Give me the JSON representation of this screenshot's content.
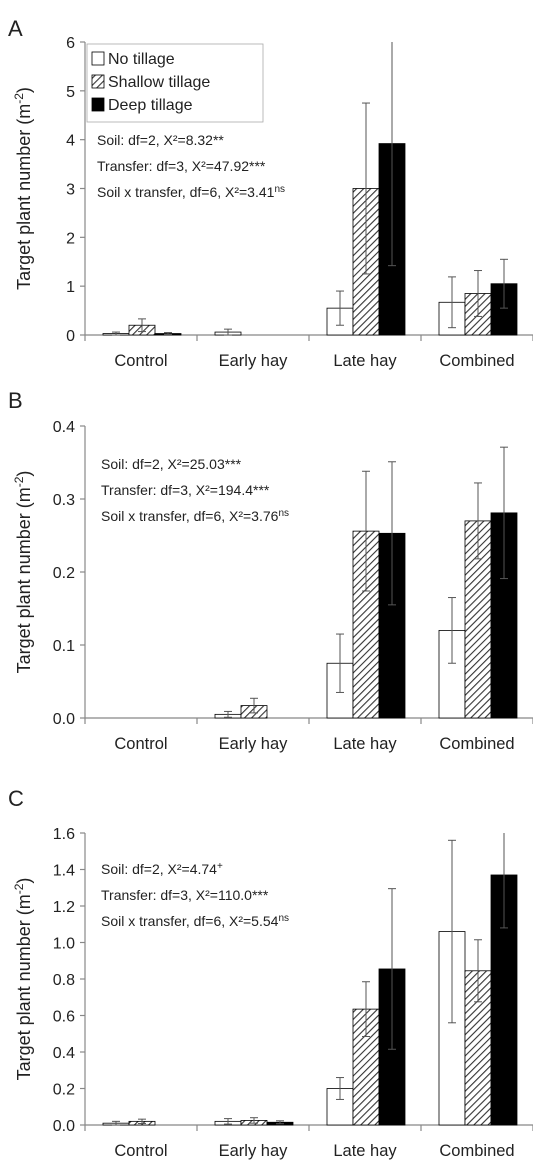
{
  "legend": {
    "items": [
      {
        "label": "No tillage",
        "fill": "white"
      },
      {
        "label": "Shallow tillage",
        "fill": "hatch"
      },
      {
        "label": "Deep tillage",
        "fill": "black"
      }
    ]
  },
  "colors": {
    "axis": "#888888",
    "deep": "#000000",
    "none": "#ffffff",
    "hatch": "#333333"
  },
  "chart_data": [
    {
      "panel": "A",
      "type": "bar",
      "ylabel_main": "Target plant number (m",
      "ylabel_sup": "-2",
      "ylabel_close": ")",
      "categories": [
        "Control",
        "Early hay",
        "Late hay",
        "Combined"
      ],
      "ylim": [
        0,
        6
      ],
      "yticks": [
        0,
        1,
        2,
        3,
        4,
        5,
        6
      ],
      "tick_labels": [
        "0",
        "1",
        "2",
        "3",
        "4",
        "5",
        "6"
      ],
      "series": [
        {
          "name": "No tillage",
          "values": [
            0.03,
            0.06,
            0.55,
            0.67
          ],
          "err": [
            0.03,
            0.06,
            0.35,
            0.52
          ]
        },
        {
          "name": "Shallow tillage",
          "values": [
            0.2,
            0,
            3.0,
            0.85
          ],
          "err": [
            0.13,
            0,
            1.75,
            0.47
          ]
        },
        {
          "name": "Deep tillage",
          "values": [
            0.03,
            0,
            3.92,
            1.05
          ],
          "err": [
            0.02,
            0,
            2.5,
            0.5
          ]
        }
      ],
      "stats": [
        {
          "text": "Soil: df=2, X²=8.32**",
          "sup": ""
        },
        {
          "text": "Transfer: df=3, X²=47.92***",
          "sup": ""
        },
        {
          "text": "Soil x  transfer, df=6, X²=3.41",
          "sup": "ns"
        }
      ],
      "show_legend": true
    },
    {
      "panel": "B",
      "type": "bar",
      "ylabel_main": "Target plant number (m",
      "ylabel_sup": "-2",
      "ylabel_close": ")",
      "categories": [
        "Control",
        "Early hay",
        "Late hay",
        "Combined"
      ],
      "ylim": [
        0,
        0.4
      ],
      "yticks": [
        0,
        0.1,
        0.2,
        0.3,
        0.4
      ],
      "tick_labels": [
        "0.0",
        "0.1",
        "0.2",
        "0.3",
        "0.4"
      ],
      "series": [
        {
          "name": "No tillage",
          "values": [
            0,
            0.005,
            0.075,
            0.12
          ],
          "err": [
            0,
            0.004,
            0.04,
            0.045
          ]
        },
        {
          "name": "Shallow tillage",
          "values": [
            0,
            0.017,
            0.256,
            0.27
          ],
          "err": [
            0,
            0.01,
            0.082,
            0.052
          ]
        },
        {
          "name": "Deep tillage",
          "values": [
            0,
            0,
            0.253,
            0.281
          ],
          "err": [
            0,
            0,
            0.098,
            0.09
          ]
        }
      ],
      "stats": [
        {
          "text": "Soil: df=2, X²=25.03***",
          "sup": ""
        },
        {
          "text": "Transfer: df=3, X²=194.4***",
          "sup": ""
        },
        {
          "text": "Soil x  transfer, df=6, X²=3.76",
          "sup": "ns"
        }
      ],
      "show_legend": false
    },
    {
      "panel": "C",
      "type": "bar",
      "ylabel_main": "Target plant number (m",
      "ylabel_sup": "-2",
      "ylabel_close": ")",
      "categories": [
        "Control",
        "Early hay",
        "Late hay",
        "Combined"
      ],
      "ylim": [
        0,
        1.6
      ],
      "yticks": [
        0,
        0.2,
        0.4,
        0.6,
        0.8,
        1.0,
        1.2,
        1.4,
        1.6
      ],
      "tick_labels": [
        "0.0",
        "0.2",
        "0.4",
        "0.6",
        "0.8",
        "1.0",
        "1.2",
        "1.4",
        "1.6"
      ],
      "series": [
        {
          "name": "No tillage",
          "values": [
            0.01,
            0.02,
            0.2,
            1.06
          ],
          "err": [
            0.01,
            0.015,
            0.06,
            0.5
          ]
        },
        {
          "name": "Shallow tillage",
          "values": [
            0.02,
            0.025,
            0.635,
            0.845
          ],
          "err": [
            0.012,
            0.015,
            0.15,
            0.17
          ]
        },
        {
          "name": "Deep tillage",
          "values": [
            0,
            0.015,
            0.855,
            1.37
          ],
          "err": [
            0,
            0.008,
            0.44,
            0.29
          ]
        }
      ],
      "stats": [
        {
          "text": "Soil: df=2, X²=4.74",
          "sup": "+"
        },
        {
          "text": "Transfer: df=3, X²=110.0***",
          "sup": ""
        },
        {
          "text": "Soil x  transfer, df=6, X²=5.54",
          "sup": "ns"
        }
      ],
      "show_legend": false
    }
  ]
}
